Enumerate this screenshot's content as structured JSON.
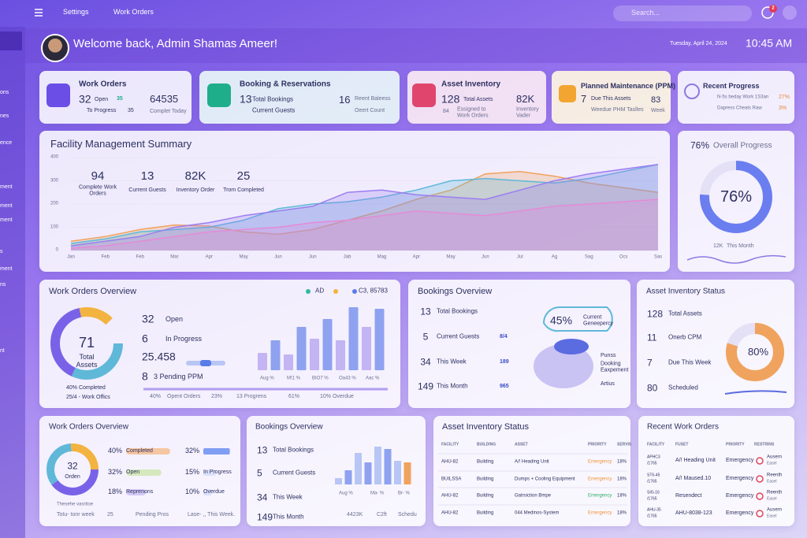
{
  "topbar": {
    "settings": "Settings",
    "work_orders": "Work Orders",
    "search": "Search...",
    "badge": "2"
  },
  "sidebar": [
    "ons",
    "nes",
    "ence",
    "ment",
    "ment",
    "ment",
    "s",
    "ment",
    "ns",
    "nt"
  ],
  "header": {
    "welcome": "Welcome back, Admin Shamas Ameer!",
    "date": "Tuesday, April 24, 2024",
    "time": "10:45 AM"
  },
  "kpis": [
    {
      "title": "Work Orders",
      "value": "32",
      "value_label": "Open",
      "badge": "35",
      "sub": "To Progress",
      "sub_value": "35",
      "value2": "64535",
      "value2_label": "Complet Today"
    },
    {
      "title": "Booking & Reservations",
      "value": "13",
      "value_label": "Total Bookings",
      "sub": "Current Guests",
      "value2": "16",
      "value2_label": "Reent Baleess",
      "sub2": "Oeert Count"
    },
    {
      "title": "Asset Inventory",
      "value": "128",
      "value_label": "Total Assets",
      "badge": "84",
      "sub": "Essigned to Work Orders",
      "value2": "82K",
      "value2_label": "Inventory Vader"
    },
    {
      "title": "Planned Maintenance (PPM)",
      "value": "7",
      "value_label": "Due This Assets",
      "sub": "Weedue PHM Taslles",
      "value2": "83",
      "value2_label": "Week"
    },
    {
      "title": "Recent Progress",
      "rows": [
        {
          "text": "N-5s beday Work 1S3an",
          "value": "27%"
        },
        {
          "text": "Dapress Cheats Raw",
          "value": "3%"
        }
      ]
    }
  ],
  "summary": {
    "title": "Facility Management Summary",
    "stats": [
      {
        "value": "94",
        "label": "Complete Work Orders"
      },
      {
        "value": "13",
        "label": "Current Guests"
      },
      {
        "value": "82K",
        "label": "Inventory Order"
      },
      {
        "value": "25",
        "label": "Trom Completed"
      }
    ],
    "months": [
      "Jan",
      "Feb",
      "Feb",
      "Mar",
      "Apr",
      "May",
      "Jun",
      "Jun",
      "Jab",
      "Mag",
      "Apr",
      "May",
      "Jun",
      "Jul",
      "Ag",
      "Sag",
      "Ocs",
      "Sas"
    ],
    "ylim": [
      0,
      400
    ],
    "yticks": [
      0,
      100,
      200,
      300,
      400
    ],
    "series": [
      {
        "color": "#f0a35e",
        "values": [
          40,
          60,
          90,
          110,
          105,
          80,
          70,
          90,
          130,
          170,
          220,
          260,
          330,
          340,
          320,
          290,
          270,
          250
        ]
      },
      {
        "color": "#5fb8d8",
        "values": [
          30,
          50,
          80,
          90,
          100,
          130,
          180,
          200,
          210,
          230,
          260,
          300,
          310,
          300,
          290,
          310,
          340,
          370
        ]
      },
      {
        "color": "#9b7ef0",
        "values": [
          20,
          40,
          60,
          100,
          120,
          150,
          170,
          190,
          250,
          260,
          240,
          230,
          220,
          260,
          300,
          330,
          350,
          370
        ]
      },
      {
        "color": "#e58ad8",
        "values": [
          10,
          20,
          40,
          60,
          80,
          90,
          100,
          120,
          130,
          150,
          170,
          160,
          150,
          170,
          190,
          200,
          210,
          220
        ]
      }
    ]
  },
  "overall": {
    "title": "Overall Progress",
    "value": 76,
    "label": "76%",
    "footer_value": "12K",
    "footer": "This Month"
  },
  "wo_overview": {
    "title": "Work Orders Overview",
    "legend": [
      "AD",
      "C3, 85783"
    ],
    "donut_value": "71",
    "donut_label": "Total Assets",
    "open_value": "32",
    "open": "Open",
    "progress_value": "6",
    "progress": "In Progress",
    "total": "25.458",
    "pending_value": "8",
    "pending": "3 Pending PPM",
    "completed": "40% Completed",
    "work_offices": "25/4 - Work Offics",
    "footer": [
      "40%",
      "Opent Orders",
      "23%",
      "13 Progrens",
      "61%",
      "10% Overdue"
    ],
    "bar_labels": [
      "Aug %",
      "M!1 %",
      "BIO7 %",
      "Oa43 %",
      "Aac %"
    ],
    "bars": [
      22,
      38,
      20,
      55,
      40,
      65,
      38,
      80,
      55,
      78
    ]
  },
  "bookings": {
    "title": "Bookings Overview",
    "rows": [
      {
        "value": "13",
        "label": "Total Bookings"
      },
      {
        "value": "5",
        "label": "Current Guests",
        "right": "8/4"
      },
      {
        "value": "34",
        "label": "This Week",
        "right": "189"
      },
      {
        "value": "149",
        "label": "This Month",
        "right": "965"
      }
    ],
    "badge": "45%",
    "badge_label": "Current Geneepercy",
    "legend": [
      "Punss",
      "Dooking Eaxpement",
      "Artius"
    ]
  },
  "asset_status": {
    "title": "Asset Inventory Status",
    "rows": [
      {
        "value": "128",
        "label": "Total Assets"
      },
      {
        "value": "11",
        "label": "Onerb CPM"
      },
      {
        "value": "7",
        "label": "Due This Week"
      },
      {
        "value": "80",
        "label": "Scheduled"
      }
    ],
    "donut": 80,
    "donut_label": "80%"
  },
  "wo2": {
    "title": "Work Orders Overview",
    "donut_value": "32",
    "donut_label": "Orden",
    "left": [
      {
        "value": 40,
        "label": "40%",
        "text": "Completed"
      },
      {
        "value": 32,
        "label": "32%",
        "text": "Open"
      },
      {
        "value": 18,
        "label": "18%",
        "text": "Reprenons"
      }
    ],
    "right": [
      {
        "value": 32,
        "label": "32%"
      },
      {
        "value": 15,
        "label": "15%",
        "text": "In Progress"
      },
      {
        "value": 10,
        "label": "10%",
        "text": "Overdue"
      }
    ],
    "footer": [
      "Thesehe vasrtioe",
      "Totu- tonr week",
      "25",
      "Pending Pros",
      "Lase- ,, This Week."
    ]
  },
  "bk2": {
    "title": "Bookings Overview",
    "rows": [
      {
        "value": "13",
        "label": "Total Bookings"
      },
      {
        "value": "5",
        "label": "Current Guests"
      },
      {
        "value": "34",
        "label": "This Week"
      },
      {
        "value": "149",
        "label": "This Month"
      }
    ],
    "bars": [
      8,
      18,
      40,
      28,
      48,
      45,
      30,
      28
    ],
    "bar_labels": [
      "Aug %",
      "Ma- %",
      "Br- %"
    ],
    "footer": [
      "4423K",
      "C2ft",
      "Schedu"
    ]
  },
  "asset_table": {
    "title": "Asset Inventory Status",
    "headers": [
      "FACILITY",
      "BUILDING",
      "ASSET",
      "PRIORITY",
      "SERVIS"
    ],
    "rows": [
      [
        "AHU-82",
        "Building",
        "A/! Heading Unit",
        "Emergency",
        "18%"
      ],
      [
        "BUILSSA",
        "Building",
        "Dumps + Cooling Equipment",
        "Emergency",
        "18%"
      ],
      [
        "AHU-82",
        "Building",
        "Gatrsiction Bmpe",
        "Emergency",
        "18%"
      ],
      [
        "AHU-82",
        "Building",
        "044 Medinos-System",
        "Emergency",
        "18%"
      ]
    ]
  },
  "recent": {
    "title": "Recent Work Orders",
    "headers": [
      "FACILITY",
      "FUSET",
      "PRIORITY",
      "RESTRINS"
    ],
    "rows": [
      [
        "APHC3",
        "/1765",
        "A/! Heading Unit",
        "Emergency",
        "Ausern",
        "Easel"
      ],
      [
        "ST6-45",
        "/1765",
        "A/! Maused.10",
        "Emergency",
        "Reenth",
        "Easel"
      ],
      [
        "SIG-16",
        "/1765",
        "Resendect",
        "Emergency",
        "Reenth",
        "Easel"
      ],
      [
        "AHU-35",
        "/1765",
        "AHU-8038-123",
        "Emergency",
        "Ausern",
        "Easel"
      ]
    ]
  }
}
